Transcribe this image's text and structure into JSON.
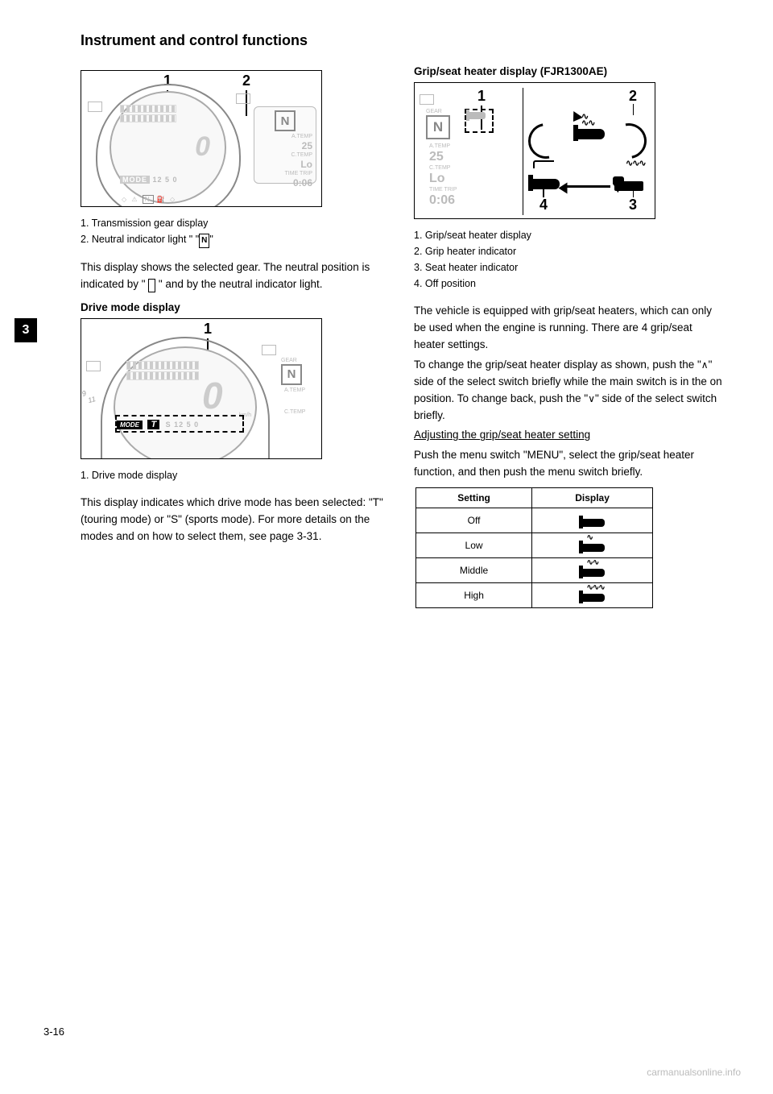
{
  "page": {
    "header": "Instrument and control functions",
    "chapter_number": "3",
    "page_number": "3-16",
    "watermark": "carmanualsonline.info"
  },
  "left_column": {
    "fig1": {
      "callout_1": "1",
      "callout_2": "2",
      "side_gear": "N",
      "side_a_temp_label": "A.TEMP",
      "side_a_temp_val": "25",
      "side_c_temp_label": "C.TEMP",
      "side_c_temp_val": "Lo",
      "side_trip_label": "TIME TRIP",
      "side_trip_val": "0:06",
      "lcd_mode": "MODE",
      "lcd_bottom": "12 5 0",
      "tell_row": "N"
    },
    "legend1_line1": "1. Transmission gear display",
    "legend1_line2": "2. Neutral indicator light \" \"",
    "para1": "This display shows the selected gear. The neutral position is indicated by \"    \" and by the neutral indicator light.",
    "drivemode_head": "Drive mode display",
    "fig2": {
      "callout_1": "1",
      "lcd_mode_text": "MODE",
      "lcd_mode_sel": "T",
      "lcd_mode_rest": "S 12 5 0",
      "gear_big": "0",
      "tiny_km": "km/h",
      "side_gear": "N",
      "side_a_temp": "A.TEMP",
      "side_c_temp": "C.TEMP"
    },
    "legend2": "1. Drive mode display",
    "para2": "This display indicates which drive mode has been selected: \"T\" (touring mode) or \"S\" (sports mode). For more details on the modes and on how to select them, see page 3-31."
  },
  "right_column": {
    "gripseat_head": "Grip/seat heater display (FJR1300AE)",
    "fig3": {
      "callout_1": "1",
      "callout_2": "2",
      "callout_3": "3",
      "callout_4": "4",
      "left_gear_label": "GEAR",
      "left_gear": "N",
      "left_a_temp_label": "A.TEMP",
      "left_a_temp_val": "25",
      "left_c_temp_label": "C.TEMP",
      "left_c_temp_val": "Lo",
      "left_trip_label": "TIME TRIP",
      "left_trip_val": "0:06"
    },
    "legend3_1": "1. Grip/seat heater display",
    "legend3_2": "2. Grip heater indicator",
    "legend3_3": "3. Seat heater indicator",
    "legend3_4": "4. Off position",
    "para_r1a": "The vehicle is equipped with grip/seat heaters, which can only be used when the engine is running. There are 4 grip/seat heater settings.",
    "para_r1b": "To change the grip/seat heater display as shown, push the \"    \" side of the select switch briefly while the main switch is in the on position. To change back, push the \"    \" side of the select switch briefly.",
    "adjust_head": "Adjusting the grip/seat heater setting",
    "para_r2": "Push the menu switch \"MENU\", select the grip/seat heater function, and then push the menu switch briefly.",
    "table": {
      "header_setting": "Setting",
      "header_display": "Display",
      "rows": [
        {
          "label": "Off",
          "waves": 0
        },
        {
          "label": "Low",
          "waves": 1
        },
        {
          "label": "Middle",
          "waves": 2
        },
        {
          "label": "High",
          "waves": 3
        }
      ]
    }
  },
  "colors": {
    "text": "#000000",
    "faint": "#bbbbbb",
    "border": "#000000",
    "bg": "#ffffff"
  }
}
